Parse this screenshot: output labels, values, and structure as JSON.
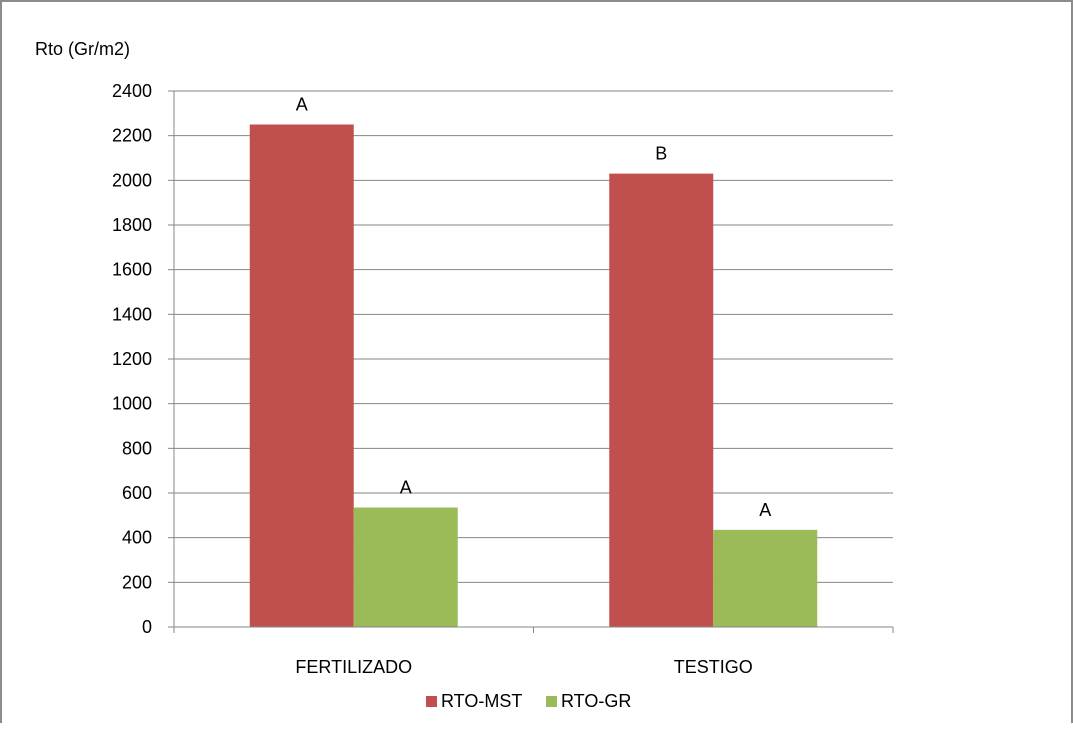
{
  "chart_data": {
    "type": "bar",
    "ylabel": "Rto (Gr/m2)",
    "xlabel": "",
    "categories": [
      "FERTILIZADO",
      "TESTIGO"
    ],
    "ylim": [
      0,
      2400
    ],
    "yticks": [
      0,
      200,
      400,
      600,
      800,
      1000,
      1200,
      1400,
      1600,
      1800,
      2000,
      2200,
      2400
    ],
    "grid": true,
    "legend_position": "bottom",
    "series": [
      {
        "name": "RTO-MST",
        "color": "#c0504d",
        "values": [
          2250,
          2030
        ],
        "annotations": [
          "A",
          "B"
        ]
      },
      {
        "name": "RTO-GR",
        "color": "#9bbb59",
        "values": [
          535,
          435
        ],
        "annotations": [
          "A",
          "A"
        ]
      }
    ]
  }
}
